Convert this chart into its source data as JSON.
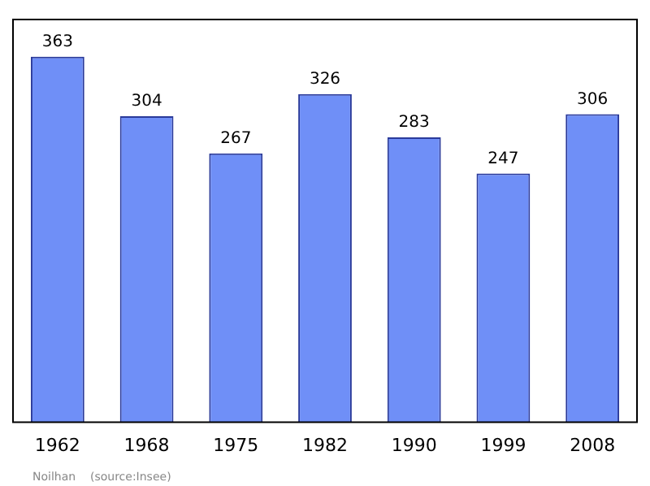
{
  "chart_data": {
    "type": "bar",
    "categories": [
      "1962",
      "1968",
      "1975",
      "1982",
      "1990",
      "1999",
      "2008"
    ],
    "values": [
      363,
      304,
      267,
      326,
      283,
      247,
      306
    ],
    "color": "#6f8ff7",
    "data_labels": true,
    "grid": false,
    "legend": false,
    "tick_labels": "x",
    "annotations": [
      "Noilhan    (source:Insee)"
    ]
  }
}
